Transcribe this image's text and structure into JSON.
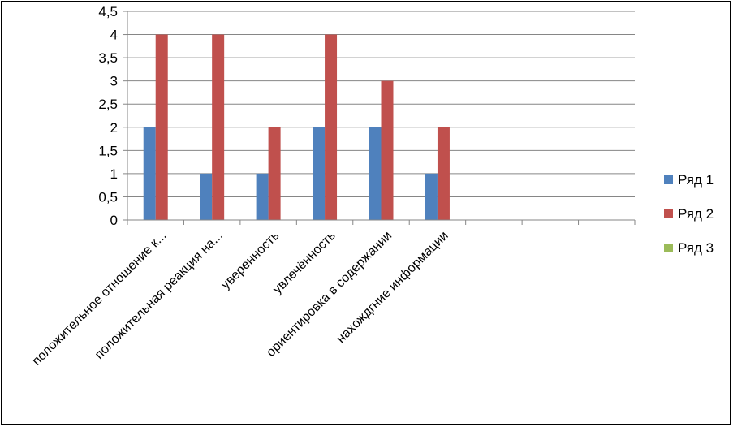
{
  "chart_data": {
    "type": "bar",
    "categories": [
      "положительное отношение к...",
      "положительная реакция на...",
      "уверенность",
      "увлечённость",
      "ориентировка в содержании",
      "нахождгние информации",
      "",
      "",
      ""
    ],
    "series": [
      {
        "name": "Ряд 1",
        "color": "#4F81BD",
        "values": [
          2,
          1,
          1,
          2,
          2,
          1,
          null,
          null,
          null
        ]
      },
      {
        "name": "Ряд 2",
        "color": "#C0504D",
        "values": [
          4,
          4,
          2,
          4,
          3,
          2,
          null,
          null,
          null
        ]
      },
      {
        "name": "Ряд 3",
        "color": "#9BBB59",
        "values": [
          null,
          null,
          null,
          null,
          null,
          null,
          null,
          null,
          null
        ]
      }
    ],
    "y_ticks": [
      "0",
      "0,5",
      "1",
      "1,5",
      "2",
      "2,5",
      "3",
      "3,5",
      "4",
      "4,5"
    ],
    "ylim": [
      0,
      4.5
    ],
    "grid": true,
    "legend_position": "right"
  }
}
